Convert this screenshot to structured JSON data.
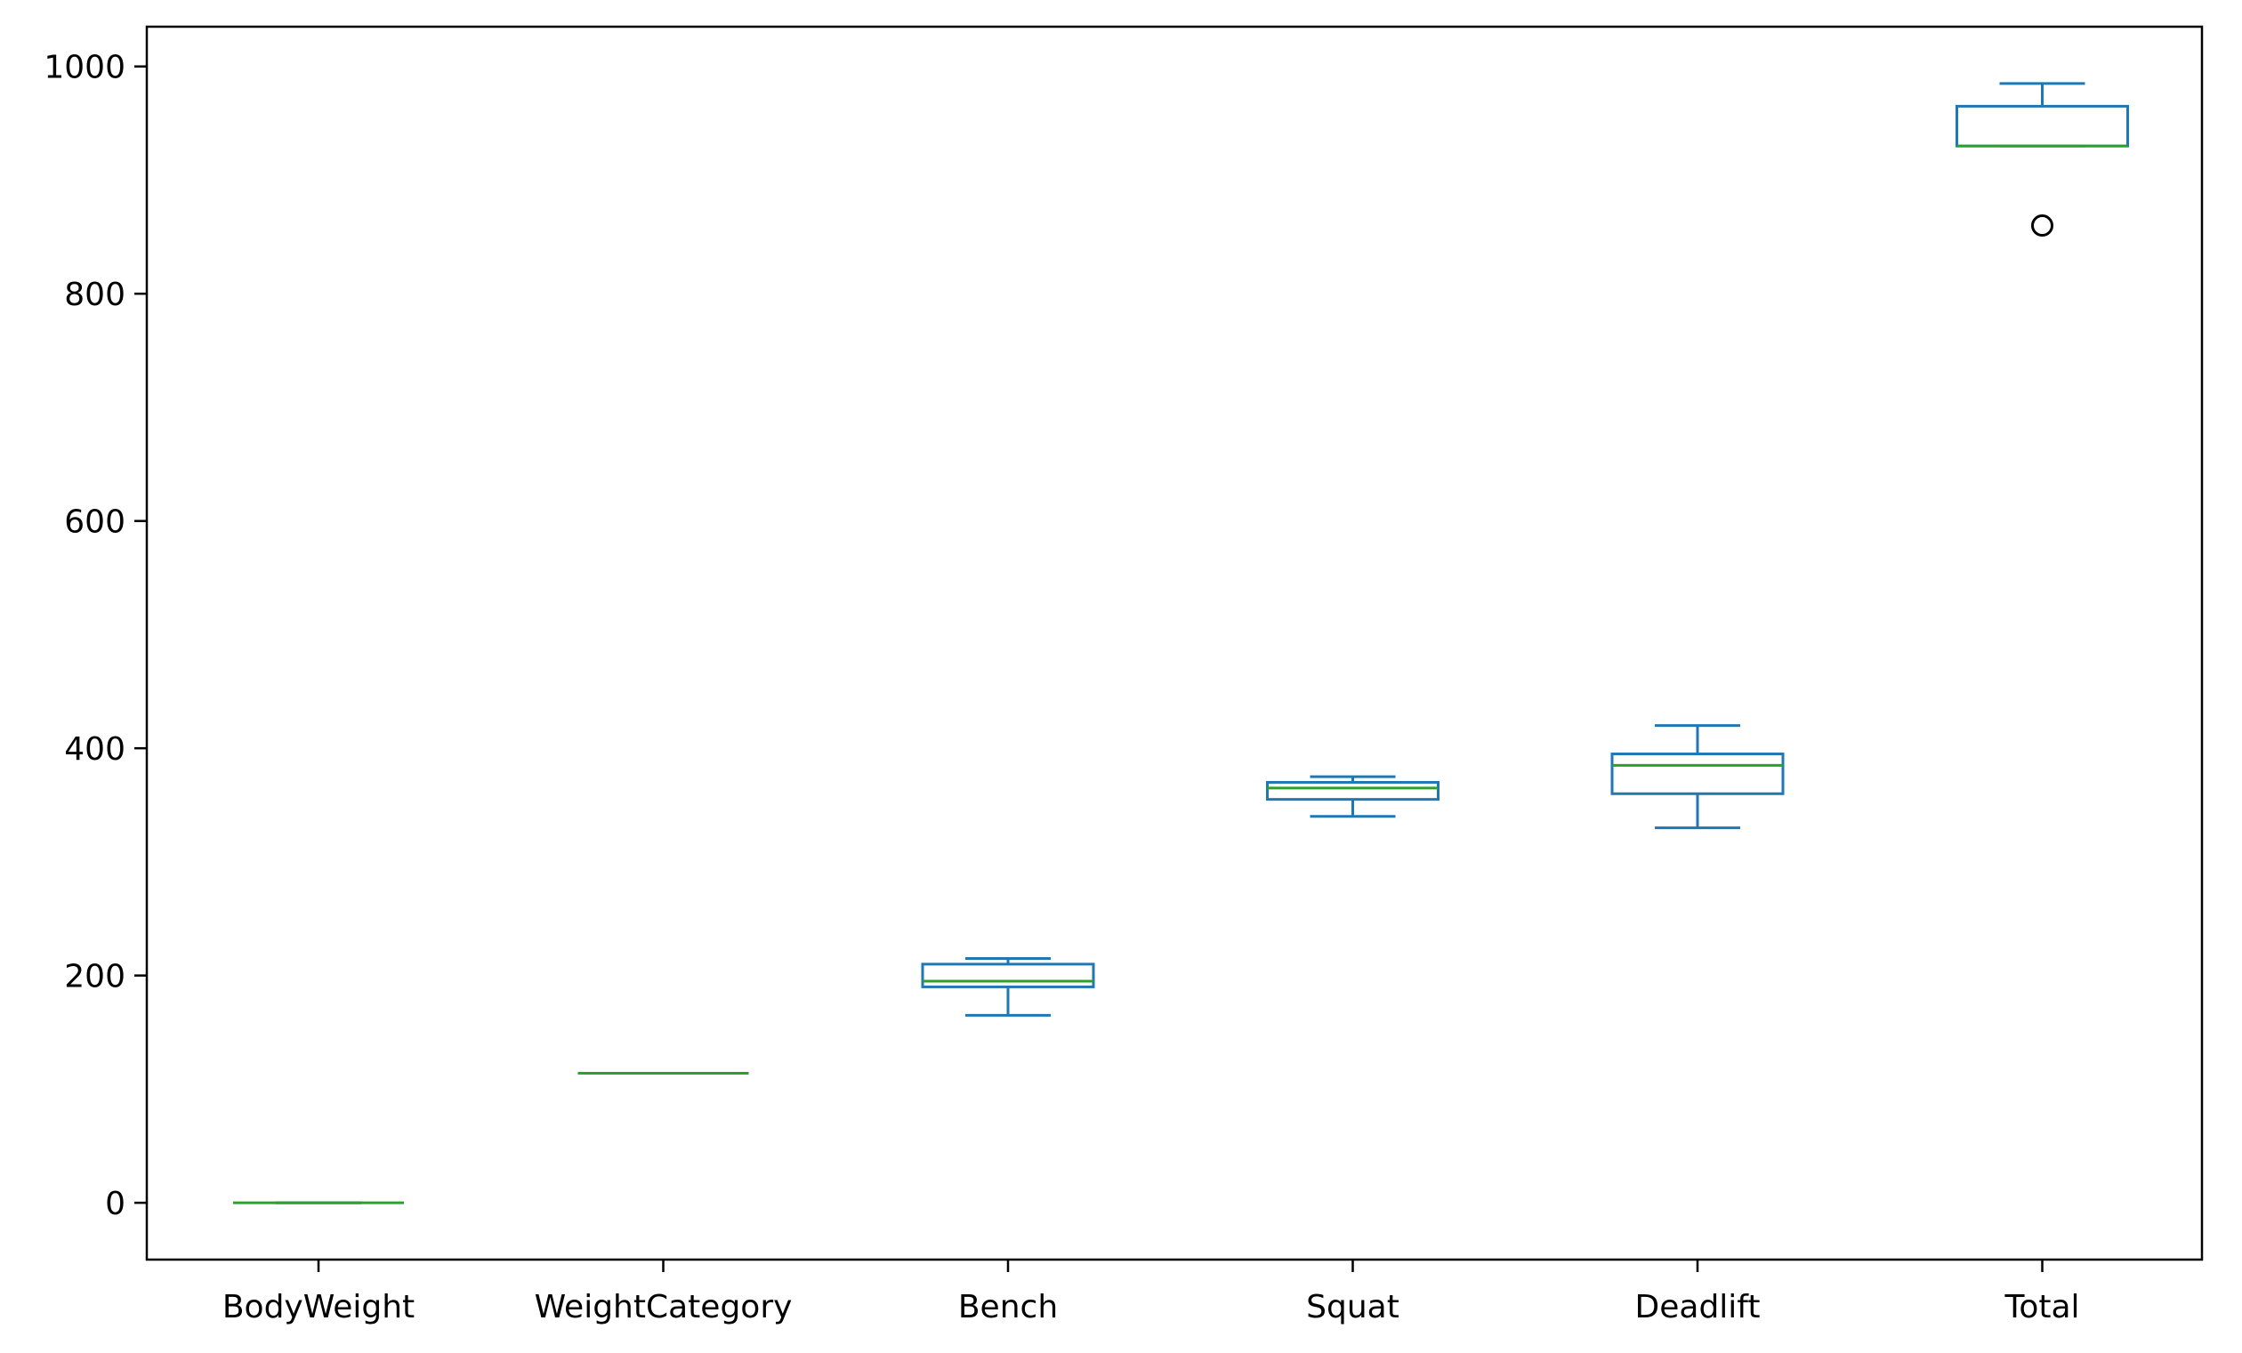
{
  "chart_data": {
    "type": "box",
    "title": "",
    "xlabel": "",
    "ylabel": "",
    "categories": [
      "BodyWeight",
      "WeightCategory",
      "Bench",
      "Squat",
      "Deadlift",
      "Total"
    ],
    "ylim": [
      -50,
      1035
    ],
    "yticks": [
      0,
      200,
      400,
      600,
      800,
      1000
    ],
    "grid": false,
    "box_color": "#1f77b4",
    "median_color": "#2ca02c",
    "outlier_color": "#000000",
    "boxes": [
      {
        "label": "BodyWeight",
        "whisker_low": 0,
        "q1": 0,
        "median": 0,
        "q3": 0,
        "whisker_high": 0,
        "outliers": []
      },
      {
        "label": "WeightCategory",
        "whisker_low": 114,
        "q1": 114,
        "median": 114,
        "q3": 114,
        "whisker_high": 114,
        "outliers": []
      },
      {
        "label": "Bench",
        "whisker_low": 165,
        "q1": 190,
        "median": 195,
        "q3": 210,
        "whisker_high": 215,
        "outliers": []
      },
      {
        "label": "Squat",
        "whisker_low": 340,
        "q1": 355,
        "median": 365,
        "q3": 370,
        "whisker_high": 375,
        "outliers": []
      },
      {
        "label": "Deadlift",
        "whisker_low": 330,
        "q1": 360,
        "median": 385,
        "q3": 395,
        "whisker_high": 420,
        "outliers": []
      },
      {
        "label": "Total",
        "whisker_low": 930,
        "q1": 930,
        "median": 930,
        "q3": 965,
        "whisker_high": 985,
        "outliers": [
          860
        ]
      }
    ]
  }
}
